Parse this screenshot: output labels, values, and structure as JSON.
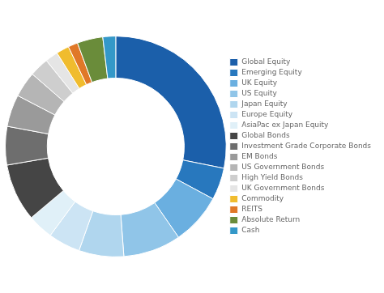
{
  "chart_data": {
    "type": "doughnut",
    "categories": [
      "Global Equity",
      "Emerging Equity",
      "UK Equity",
      "US Equity",
      "Japan Equity",
      "Europe Equity",
      "AsiaPac ex Japan Equity",
      "Global Bonds",
      "Investment Grade Corporate Bonds",
      "EM Bonds",
      "US Government Bonds",
      "High Yield Bonds",
      "UK Government Bonds",
      "Commodity",
      "REITS",
      "Absolute Return",
      "Cash"
    ],
    "values": [
      30,
      5,
      8,
      9,
      7,
      5,
      4,
      9,
      6,
      5,
      4,
      3,
      2,
      2,
      1.5,
      4,
      2
    ],
    "colors": [
      "#1b5faa",
      "#2878be",
      "#6aafe0",
      "#90c5e8",
      "#b0d6ee",
      "#cce4f4",
      "#e0f0f8",
      "#454545",
      "#6e6e6e",
      "#9a9a9a",
      "#b5b5b5",
      "#cecece",
      "#e5e5e5",
      "#f0bc2e",
      "#e07828",
      "#6a8c3a",
      "#3498c8"
    ],
    "legend": "right"
  }
}
